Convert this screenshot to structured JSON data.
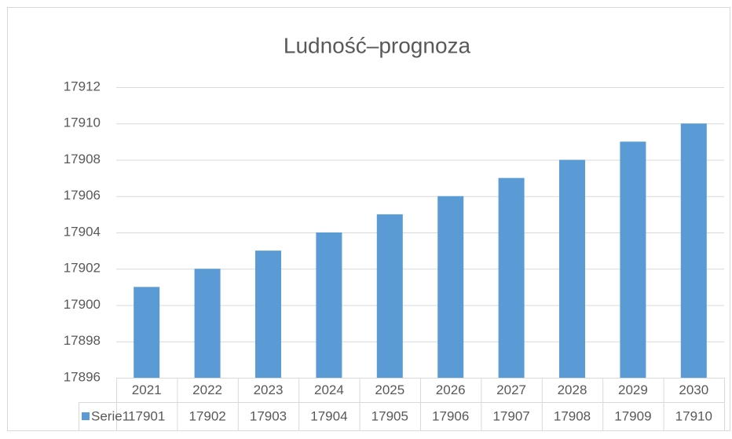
{
  "chart_data": {
    "type": "bar",
    "title": "Ludność–prognoza",
    "categories": [
      "2021",
      "2022",
      "2023",
      "2024",
      "2025",
      "2026",
      "2027",
      "2028",
      "2029",
      "2030"
    ],
    "series": [
      {
        "name": "Serie1",
        "color": "#5b9bd5",
        "values": [
          17901,
          17902,
          17903,
          17904,
          17905,
          17906,
          17907,
          17908,
          17909,
          17910
        ]
      }
    ],
    "ylim": [
      17896,
      17912
    ],
    "yticks": [
      17896,
      17898,
      17900,
      17902,
      17904,
      17906,
      17908,
      17910,
      17912
    ],
    "grid": true,
    "data_table": true
  }
}
